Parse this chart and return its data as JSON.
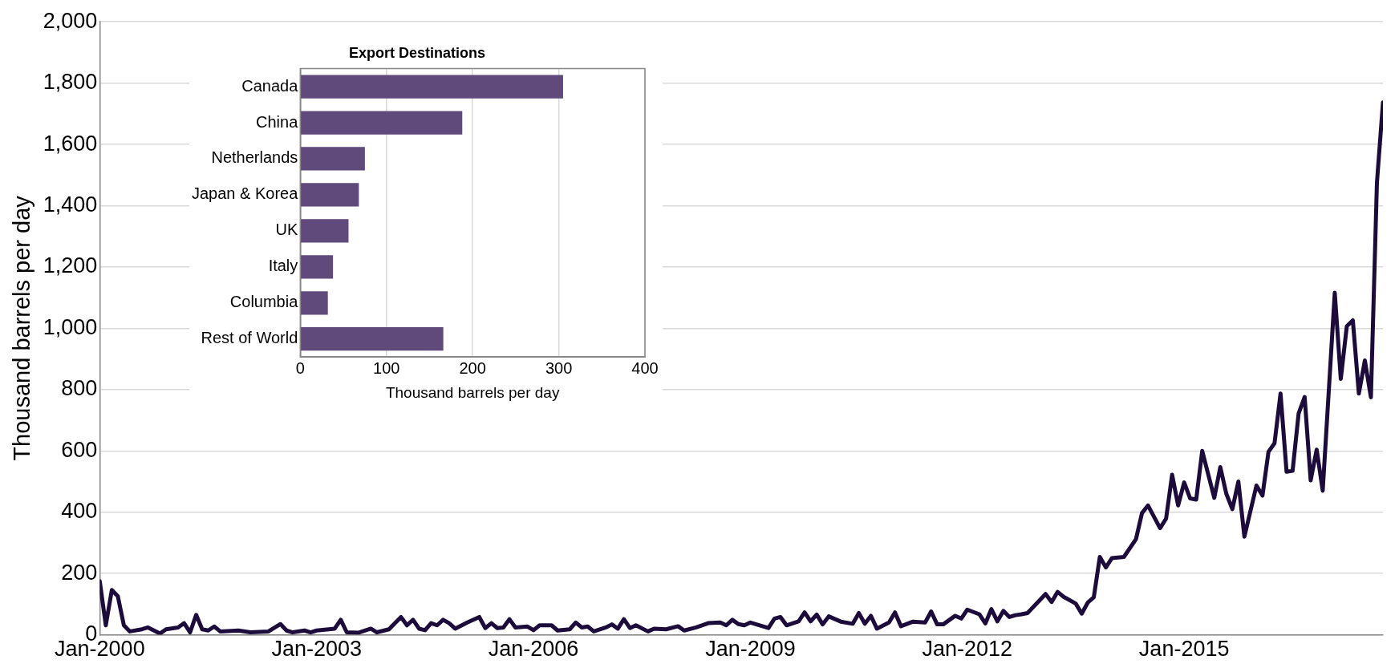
{
  "chart_data": [
    {
      "type": "line",
      "ylabel": "Thousand barrels per day",
      "color": "#1c0c3c",
      "grid": "y",
      "xlim": [
        "2000-01",
        "2017-10"
      ],
      "ylim": [
        0,
        2000
      ],
      "xticks": [
        {
          "value": "2000-01",
          "label": "Jan-2000"
        },
        {
          "value": "2003-01",
          "label": "Jan-2003"
        },
        {
          "value": "2006-01",
          "label": "Jan-2006"
        },
        {
          "value": "2009-01",
          "label": "Jan-2009"
        },
        {
          "value": "2012-01",
          "label": "Jan-2012"
        },
        {
          "value": "2015-01",
          "label": "Jan-2015"
        }
      ],
      "yticks": [
        {
          "value": 0,
          "label": "0"
        },
        {
          "value": 200,
          "label": "200"
        },
        {
          "value": 400,
          "label": "400"
        },
        {
          "value": 600,
          "label": "600"
        },
        {
          "value": 800,
          "label": "800"
        },
        {
          "value": 1000,
          "label": "1,000"
        },
        {
          "value": 1200,
          "label": "1,200"
        },
        {
          "value": 1400,
          "label": "1,400"
        },
        {
          "value": 1600,
          "label": "1,600"
        },
        {
          "value": 1800,
          "label": "1,800"
        },
        {
          "value": 2000,
          "label": "2,000"
        }
      ],
      "x": [
        "2000-01",
        "2000-02",
        "2000-03",
        "2000-04",
        "2000-05",
        "2000-06",
        "2000-08",
        "2000-09",
        "2000-11",
        "2000-12",
        "2001-02",
        "2001-03",
        "2001-04",
        "2001-05",
        "2001-06",
        "2001-07",
        "2001-08",
        "2001-09",
        "2001-12",
        "2002-02",
        "2002-05",
        "2002-07",
        "2002-08",
        "2002-09",
        "2002-11",
        "2002-12",
        "2003-01",
        "2003-04",
        "2003-05",
        "2003-06",
        "2003-08",
        "2003-10",
        "2003-11",
        "2004-01",
        "2004-03",
        "2004-04",
        "2004-05",
        "2004-06",
        "2004-07",
        "2004-08",
        "2004-09",
        "2004-10",
        "2004-11",
        "2004-12",
        "2005-02",
        "2005-04",
        "2005-05",
        "2005-06",
        "2005-07",
        "2005-08",
        "2005-09",
        "2005-10",
        "2005-12",
        "2006-01",
        "2006-02",
        "2006-04",
        "2006-05",
        "2006-07",
        "2006-08",
        "2006-09",
        "2006-10",
        "2006-11",
        "2007-01",
        "2007-02",
        "2007-03",
        "2007-04",
        "2007-05",
        "2007-06",
        "2007-08",
        "2007-09",
        "2007-11",
        "2008-01",
        "2008-02",
        "2008-04",
        "2008-06",
        "2008-08",
        "2008-09",
        "2008-10",
        "2008-11",
        "2008-12",
        "2009-01",
        "2009-04",
        "2009-05",
        "2009-06",
        "2009-07",
        "2009-09",
        "2009-10",
        "2009-11",
        "2009-12",
        "2010-01",
        "2010-02",
        "2010-04",
        "2010-06",
        "2010-07",
        "2010-08",
        "2010-09",
        "2010-10",
        "2010-12",
        "2011-01",
        "2011-02",
        "2011-04",
        "2011-06",
        "2011-07",
        "2011-08",
        "2011-09",
        "2011-11",
        "2011-12",
        "2012-01",
        "2012-03",
        "2012-04",
        "2012-05",
        "2012-06",
        "2012-07",
        "2012-08",
        "2012-09",
        "2012-10",
        "2012-11",
        "2013-02",
        "2013-03",
        "2013-04",
        "2013-05",
        "2013-07",
        "2013-08",
        "2013-09",
        "2013-10",
        "2013-11",
        "2013-12",
        "2014-01",
        "2014-03",
        "2014-05",
        "2014-06",
        "2014-07",
        "2014-09",
        "2014-10",
        "2014-11",
        "2014-12",
        "2015-01",
        "2015-02",
        "2015-03",
        "2015-04",
        "2015-06",
        "2015-07",
        "2015-08",
        "2015-09",
        "2015-10",
        "2015-11",
        "2016-01",
        "2016-02",
        "2016-03",
        "2016-04",
        "2016-05",
        "2016-06",
        "2016-07",
        "2016-08",
        "2016-09",
        "2016-10",
        "2016-11",
        "2016-12",
        "2017-02",
        "2017-03",
        "2017-04",
        "2017-05",
        "2017-06",
        "2017-07",
        "2017-08",
        "2017-09",
        "2017-10"
      ],
      "values": [
        175,
        31,
        146,
        126,
        31,
        11,
        18,
        24,
        4,
        18,
        24,
        38,
        8,
        65,
        18,
        14,
        27,
        11,
        14,
        8,
        11,
        35,
        14,
        8,
        14,
        8,
        14,
        20,
        49,
        8,
        7,
        20,
        8,
        18,
        58,
        31,
        49,
        20,
        15,
        38,
        31,
        49,
        38,
        20,
        40,
        58,
        22,
        38,
        22,
        24,
        51,
        24,
        27,
        15,
        31,
        31,
        14,
        18,
        40,
        24,
        27,
        11,
        24,
        34,
        20,
        51,
        22,
        31,
        11,
        20,
        18,
        28,
        14,
        24,
        38,
        40,
        31,
        49,
        35,
        31,
        40,
        22,
        53,
        58,
        31,
        44,
        73,
        44,
        66,
        34,
        60,
        43,
        36,
        71,
        36,
        62,
        20,
        40,
        73,
        28,
        43,
        40,
        76,
        34,
        34,
        62,
        53,
        82,
        67,
        37,
        84,
        44,
        78,
        58,
        64,
        67,
        71,
        133,
        107,
        140,
        124,
        102,
        69,
        105,
        122,
        254,
        220,
        250,
        254,
        312,
        397,
        422,
        348,
        379,
        522,
        422,
        497,
        445,
        441,
        600,
        447,
        547,
        460,
        410,
        500,
        320,
        487,
        454,
        597,
        625,
        787,
        532,
        535,
        722,
        776,
        504,
        604,
        470,
        1116,
        835,
        1007,
        1026,
        787,
        895,
        775,
        1475,
        1737
      ]
    },
    {
      "type": "bar",
      "orientation": "horizontal",
      "title": "Export Destinations",
      "xlabel": "Thousand barrels per day",
      "color": "#604a7b",
      "grid": "x",
      "xlim": [
        0,
        400
      ],
      "xticks": [
        0,
        100,
        200,
        300,
        400
      ],
      "categories": [
        "Canada",
        "China",
        "Netherlands",
        "Japan & Korea",
        "UK",
        "Italy",
        "Columbia",
        "Rest of World"
      ],
      "values": [
        305,
        188,
        75,
        68,
        56,
        38,
        32,
        166
      ]
    }
  ]
}
